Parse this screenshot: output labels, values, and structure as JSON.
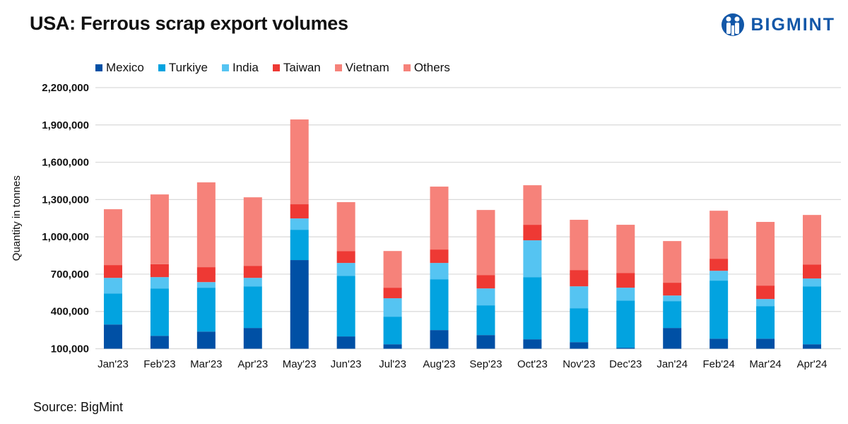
{
  "title": "USA: Ferrous scrap export volumes",
  "logo_text": "BIGMINT",
  "source": "Source: BigMint",
  "chart_data": {
    "type": "bar",
    "stacked": true,
    "title": "USA: Ferrous scrap export volumes",
    "xlabel": "",
    "ylabel": "Quantity in tonnes",
    "ylim": [
      100000,
      2200000
    ],
    "yticks": [
      "100,000",
      "400,000",
      "700,000",
      "1,000,000",
      "1,300,000",
      "1,600,000",
      "1,900,000",
      "2,200,000"
    ],
    "ytick_values": [
      100000,
      400000,
      700000,
      1000000,
      1300000,
      1600000,
      1900000,
      2200000
    ],
    "grid": true,
    "legend_position": "top-left",
    "categories": [
      "Jan'23",
      "Feb'23",
      "Mar'23",
      "Apr'23",
      "May'23",
      "Jun'23",
      "Jul'23",
      "Aug'23",
      "Sep'23",
      "Oct'23",
      "Nov'23",
      "Dec'23",
      "Jan'24",
      "Feb'24",
      "Mar'24",
      "Apr'24"
    ],
    "series": [
      {
        "name": "Mexico",
        "color": "#0050a5",
        "values": [
          295000,
          204000,
          238000,
          267000,
          813000,
          199000,
          136000,
          250000,
          210000,
          176000,
          153000,
          108000,
          267000,
          181000,
          181000,
          136000
        ]
      },
      {
        "name": "Turkiye",
        "color": "#02a3e0",
        "values": [
          250000,
          381000,
          353000,
          335000,
          244000,
          488000,
          222000,
          409000,
          239000,
          500000,
          273000,
          380000,
          216000,
          467000,
          262000,
          466000
        ]
      },
      {
        "name": "India",
        "color": "#55c4f2",
        "values": [
          125000,
          91000,
          45000,
          68000,
          91000,
          103000,
          148000,
          131000,
          136000,
          296000,
          176000,
          103000,
          45000,
          79000,
          57000,
          63000
        ]
      },
      {
        "name": "Taiwan",
        "color": "#ee3934",
        "values": [
          103000,
          104000,
          120000,
          97000,
          114000,
          96000,
          85000,
          108000,
          108000,
          125000,
          131000,
          119000,
          103000,
          97000,
          108000,
          113000
        ]
      },
      {
        "name": "Vietnam",
        "color": "#f6827a",
        "values": [
          0,
          0,
          0,
          0,
          0,
          0,
          0,
          0,
          0,
          0,
          0,
          0,
          0,
          0,
          0,
          0
        ]
      },
      {
        "name": "Others",
        "color": "#f6827a",
        "values": [
          449000,
          561000,
          682000,
          551000,
          682000,
          393000,
          295000,
          506000,
          523000,
          318000,
          404000,
          387000,
          335000,
          386000,
          512000,
          398000
        ]
      }
    ]
  }
}
